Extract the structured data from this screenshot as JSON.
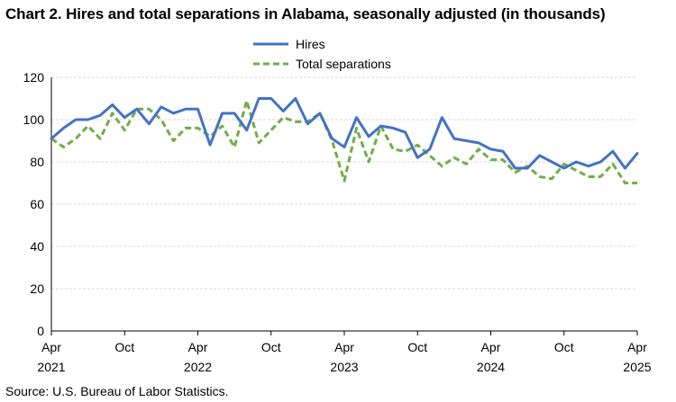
{
  "chart_data": {
    "type": "line",
    "title": "Chart 2. Hires and total separations in Alabama, seasonally adjusted (in thousands)",
    "source": "Source: U.S. Bureau of Labor Statistics.",
    "xlabel": "",
    "ylabel": "",
    "ylim": [
      0,
      120
    ],
    "yticks": [
      0,
      20,
      40,
      60,
      80,
      100,
      120
    ],
    "grid": true,
    "legend_position": "top-center",
    "x_start": "2021-04",
    "x_ticks": [
      {
        "index": 0,
        "month": "Apr",
        "year": "2021"
      },
      {
        "index": 6,
        "month": "Oct",
        "year": ""
      },
      {
        "index": 12,
        "month": "Apr",
        "year": "2022"
      },
      {
        "index": 18,
        "month": "Oct",
        "year": ""
      },
      {
        "index": 24,
        "month": "Apr",
        "year": "2023"
      },
      {
        "index": 30,
        "month": "Oct",
        "year": ""
      },
      {
        "index": 36,
        "month": "Apr",
        "year": "2024"
      },
      {
        "index": 42,
        "month": "Oct",
        "year": ""
      },
      {
        "index": 48,
        "month": "Apr",
        "year": "2025"
      }
    ],
    "series": [
      {
        "name": "Hires",
        "color": "#4472C4",
        "dash": "solid",
        "values": [
          91,
          96,
          100,
          100,
          102,
          107,
          101,
          105,
          98,
          106,
          103,
          105,
          105,
          88,
          103,
          103,
          95,
          110,
          110,
          104,
          110,
          98,
          103,
          91,
          87,
          101,
          92,
          97,
          96,
          94,
          82,
          86,
          101,
          91,
          90,
          89,
          86,
          85,
          77,
          77,
          83,
          80,
          77,
          80,
          78,
          80,
          85,
          77,
          84
        ]
      },
      {
        "name": "Total separations",
        "color": "#70AD47",
        "dash": "dashed",
        "values": [
          91,
          87,
          91,
          97,
          91,
          103,
          95,
          105,
          105,
          100,
          90,
          96,
          96,
          92,
          97,
          87,
          109,
          89,
          95,
          101,
          99,
          99,
          103,
          90,
          71,
          96,
          80,
          97,
          86,
          85,
          88,
          83,
          78,
          82,
          79,
          86,
          81,
          81,
          75,
          78,
          73,
          72,
          79,
          76,
          73,
          73,
          79,
          70,
          70
        ]
      }
    ]
  }
}
